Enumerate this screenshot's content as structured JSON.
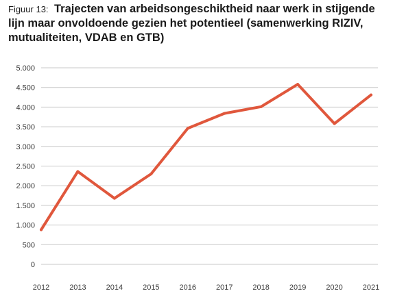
{
  "figure": {
    "label": "Figuur 13:",
    "title": "Trajecten van arbeidsongeschiktheid naar werk in stijgende lijn maar onvoldoende gezien het potentieel (samenwerking RIZIV, mutualiteiten, VDAB en GTB)"
  },
  "colors": {
    "line": "#e0573c",
    "grid": "#c8c8c8"
  },
  "chart_data": {
    "type": "line",
    "title": "",
    "xlabel": "",
    "ylabel": "",
    "x": [
      "2012",
      "2013",
      "2014",
      "2015",
      "2016",
      "2017",
      "2018",
      "2019",
      "2020",
      "2021"
    ],
    "series": [
      {
        "values": [
          880,
          2360,
          1680,
          2300,
          3460,
          3840,
          4010,
          4580,
          3580,
          4310
        ]
      }
    ],
    "ylim": [
      0,
      5000
    ],
    "yticks": [
      0,
      500,
      1000,
      1500,
      2000,
      2500,
      3000,
      3500,
      4000,
      4500,
      5000
    ],
    "ytick_labels": [
      "0",
      "500",
      "1.000",
      "1.500",
      "2.000",
      "2.500",
      "3.000",
      "3.500",
      "4.000",
      "4.500",
      "5.000"
    ],
    "grid": true,
    "legend": "none"
  }
}
